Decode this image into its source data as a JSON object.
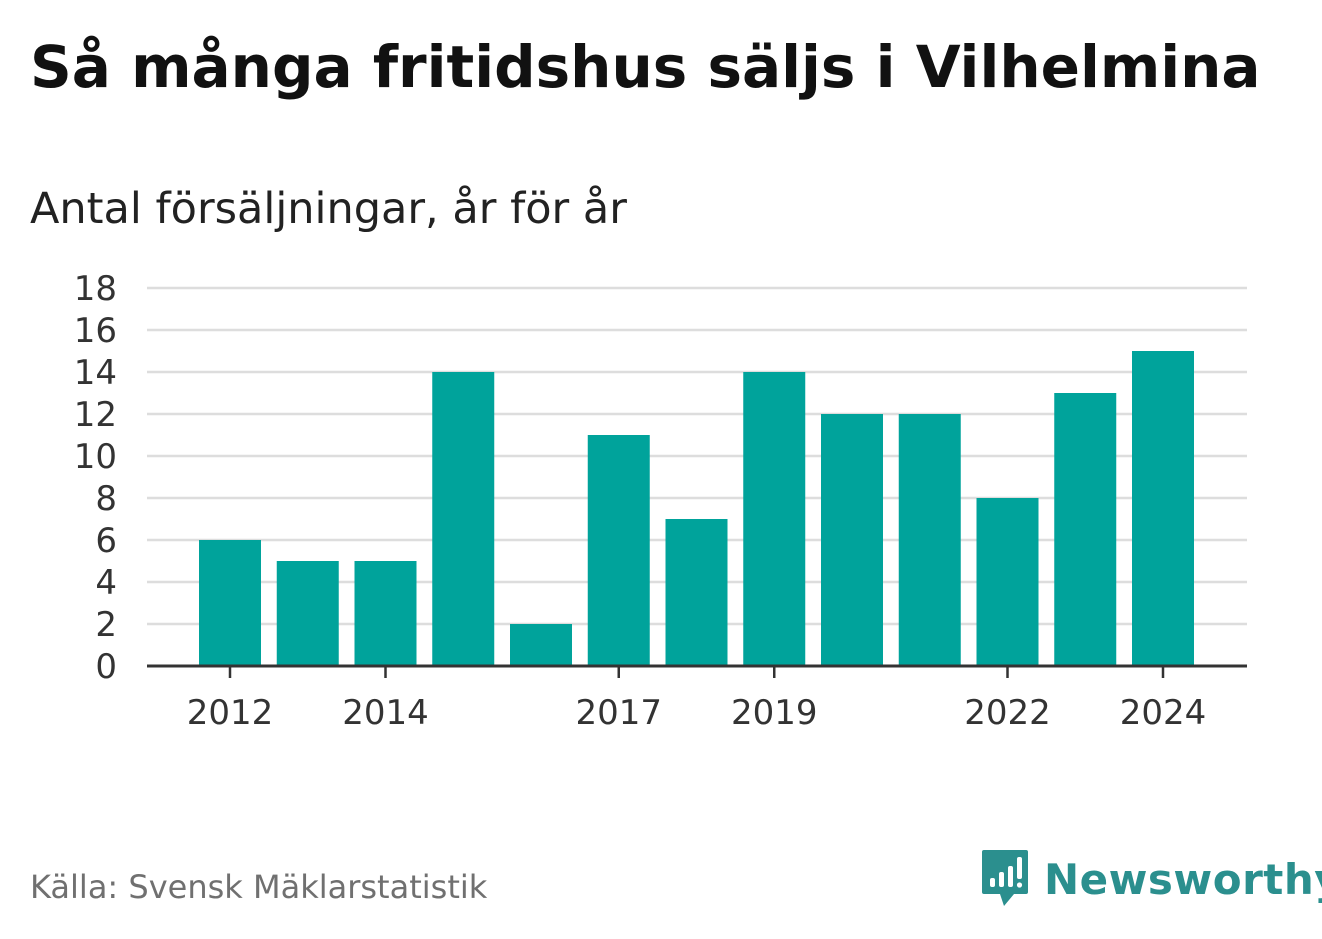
{
  "title": "Så många fritidshus säljs i Vilhelmina",
  "subtitle": "Antal försäljningar, år för år",
  "source": "Källa: Svensk Mäklarstatistik",
  "brand": {
    "name": "Newsworthy",
    "icon": "chart-speech-bubble-icon",
    "color": "#2b8f8e"
  },
  "chart_data": {
    "type": "bar",
    "categories": [
      "2012",
      "2013",
      "2014",
      "2015",
      "2016",
      "2017",
      "2018",
      "2019",
      "2020",
      "2021",
      "2022",
      "2023",
      "2024"
    ],
    "values": [
      6,
      5,
      5,
      14,
      2,
      11,
      7,
      14,
      12,
      12,
      8,
      13,
      15
    ],
    "x_tick_labels": [
      "2012",
      "2014",
      "2017",
      "2019",
      "2022",
      "2024"
    ],
    "y_ticks": [
      0,
      2,
      4,
      6,
      8,
      10,
      12,
      14,
      16,
      18
    ],
    "ylim": [
      0,
      18
    ],
    "xlabel": "",
    "ylabel": "",
    "grid": true,
    "legend": "none",
    "bar_color": "#00a39b",
    "grid_color": "#dddddd",
    "axis_color": "#333333"
  }
}
